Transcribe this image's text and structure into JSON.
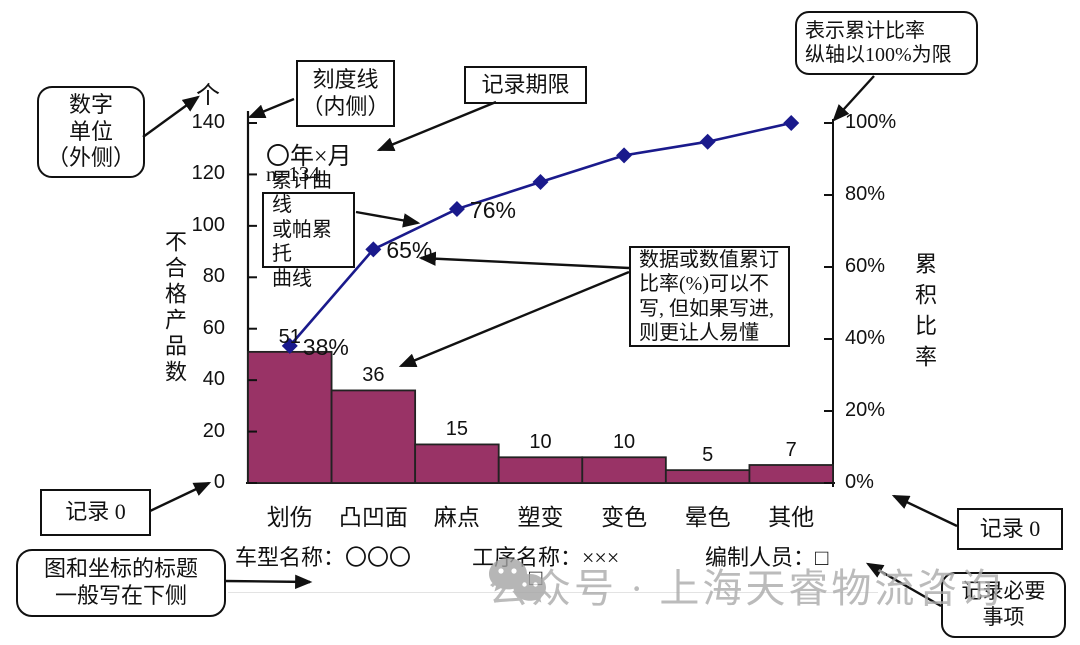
{
  "chart_data": {
    "type": "pareto-bar-line",
    "title": "",
    "categories": [
      "划伤",
      "凸凹面",
      "麻点",
      "塑变",
      "变色",
      "晕色",
      "其他"
    ],
    "values": [
      51,
      36,
      15,
      10,
      10,
      5,
      7
    ],
    "bar_value_labels": [
      "51",
      "36",
      "15",
      "10",
      "10",
      "5",
      "7"
    ],
    "cumulative_percent": [
      38.1,
      64.9,
      76.1,
      83.6,
      91.0,
      94.8,
      100
    ],
    "cumulative_point_labels": [
      "38%",
      "65%",
      "76%",
      "",
      "",
      "",
      ""
    ],
    "sample_size": "n=134",
    "period_label": "〇年×月",
    "left_axis": {
      "unit": "个",
      "title": "不合格产品数",
      "ticks": [
        "140",
        "120",
        "100",
        "80",
        "60",
        "40",
        "20",
        "0"
      ],
      "max": 140
    },
    "right_axis": {
      "title": "累积比率",
      "ticks": [
        "100%",
        "80%",
        "60%",
        "40%",
        "20%",
        "0%"
      ],
      "max_percent": 100
    },
    "bar_color": "#993366",
    "bar_border_color": "#222222",
    "line_color": "#1a1a8c",
    "legend": "off",
    "grid": "off"
  },
  "annotations": {
    "shuzi_danwei": {
      "lines": [
        "数字",
        "单位",
        "（外侧）"
      ]
    },
    "keduxian": {
      "lines": [
        "刻度线",
        "（内侧）"
      ]
    },
    "jilu_qixian": {
      "label": "记录期限"
    },
    "biaoshi_leiji": {
      "lines": [
        "表示累计比率",
        "纵轴以100%为限"
      ]
    },
    "leiji_quxian": {
      "lines": [
        "累计曲线",
        "或帕累托",
        "曲线"
      ]
    },
    "shuju_shuoming": {
      "lines": [
        "数据或数值累订",
        "比率(%)可以不",
        "写, 但如果写进,",
        "则更让人易懂"
      ]
    },
    "jilu0_left": {
      "label": "记录 0"
    },
    "tu_biaoti": {
      "lines": [
        "图和坐标的标题",
        "一般写在下侧"
      ]
    },
    "jilu0_right": {
      "label": "记录 0"
    },
    "jilu_biyao": {
      "lines": [
        "记录必要",
        "事项"
      ]
    }
  },
  "footer": {
    "model": "车型名称：〇〇〇",
    "process": "工序名称：×××",
    "author": "编制人员：□",
    "extra_checkbox": "□"
  },
  "watermark": {
    "text": "公众号 · 上海天睿物流咨询"
  }
}
